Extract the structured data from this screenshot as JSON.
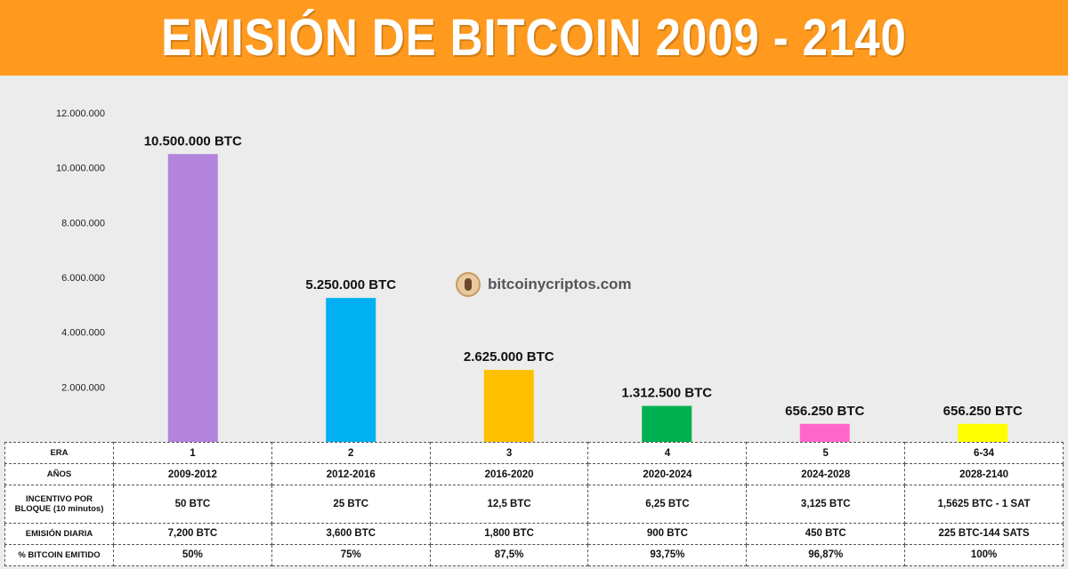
{
  "header": {
    "title": "EMISIÓN DE BITCOIN 2009 - 2140"
  },
  "watermark": {
    "text": "bitcoinycriptos.com"
  },
  "chart_data": {
    "type": "bar",
    "title": "EMISIÓN DE BITCOIN 2009 - 2140",
    "categories": [
      "1",
      "2",
      "3",
      "4",
      "5",
      "6-34"
    ],
    "values": [
      10500000,
      5250000,
      2625000,
      1312500,
      656250,
      656250
    ],
    "data_labels": [
      "10.500.000 BTC",
      "5.250.000 BTC",
      "2.625.000 BTC",
      "1.312.500 BTC",
      "656.250 BTC",
      "656.250 BTC"
    ],
    "colors": [
      "#b384dc",
      "#00b0f0",
      "#ffc000",
      "#00b050",
      "#ff66cc",
      "#ffff00"
    ],
    "ylim": [
      0,
      12000000
    ],
    "y_ticks": [
      2000000,
      4000000,
      6000000,
      8000000,
      10000000,
      12000000
    ],
    "y_tick_labels": [
      "2.000.000",
      "4.000.000",
      "6.000.000",
      "8.000.000",
      "10.000.000",
      "12.000.000"
    ],
    "grid": false,
    "legend": "none"
  },
  "table": {
    "rows": [
      {
        "header": "ERA",
        "cells": [
          "1",
          "2",
          "3",
          "4",
          "5",
          "6-34"
        ]
      },
      {
        "header": "AÑOS",
        "cells": [
          "2009-2012",
          "2012-2016",
          "2016-2020",
          "2020-2024",
          "2024-2028",
          "2028-2140"
        ]
      },
      {
        "header": "INCENTIVO POR BLOQUE (10 minutos)",
        "cells": [
          "50 BTC",
          "25 BTC",
          "12,5 BTC",
          "6,25 BTC",
          "3,125 BTC",
          "1,5625 BTC - 1 SAT"
        ]
      },
      {
        "header": "EMISIÓN DIARIA",
        "cells": [
          "7,200 BTC",
          "3,600 BTC",
          "1,800 BTC",
          "900 BTC",
          "450 BTC",
          "225 BTC-144 SATS"
        ]
      },
      {
        "header": "% BITCOIN EMITIDO",
        "cells": [
          "50%",
          "75%",
          "87,5%",
          "93,75%",
          "96,87%",
          "100%"
        ]
      }
    ]
  }
}
